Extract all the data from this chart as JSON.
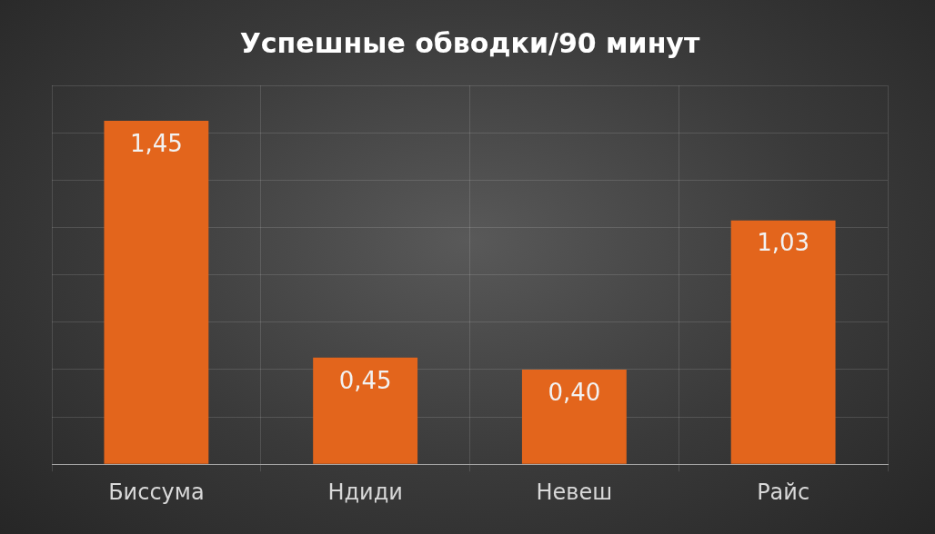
{
  "chart_data": {
    "type": "bar",
    "title": "Успешные обводки/90 минут",
    "categories": [
      "Биссума",
      "Ндиди",
      "Невеш",
      "Райс"
    ],
    "values": [
      1.45,
      0.45,
      0.4,
      1.03
    ],
    "value_labels": [
      "1,45",
      "0,45",
      "0,40",
      "1,03"
    ],
    "color": "#e3651c",
    "tick_labels": "x",
    "grid": true
  }
}
